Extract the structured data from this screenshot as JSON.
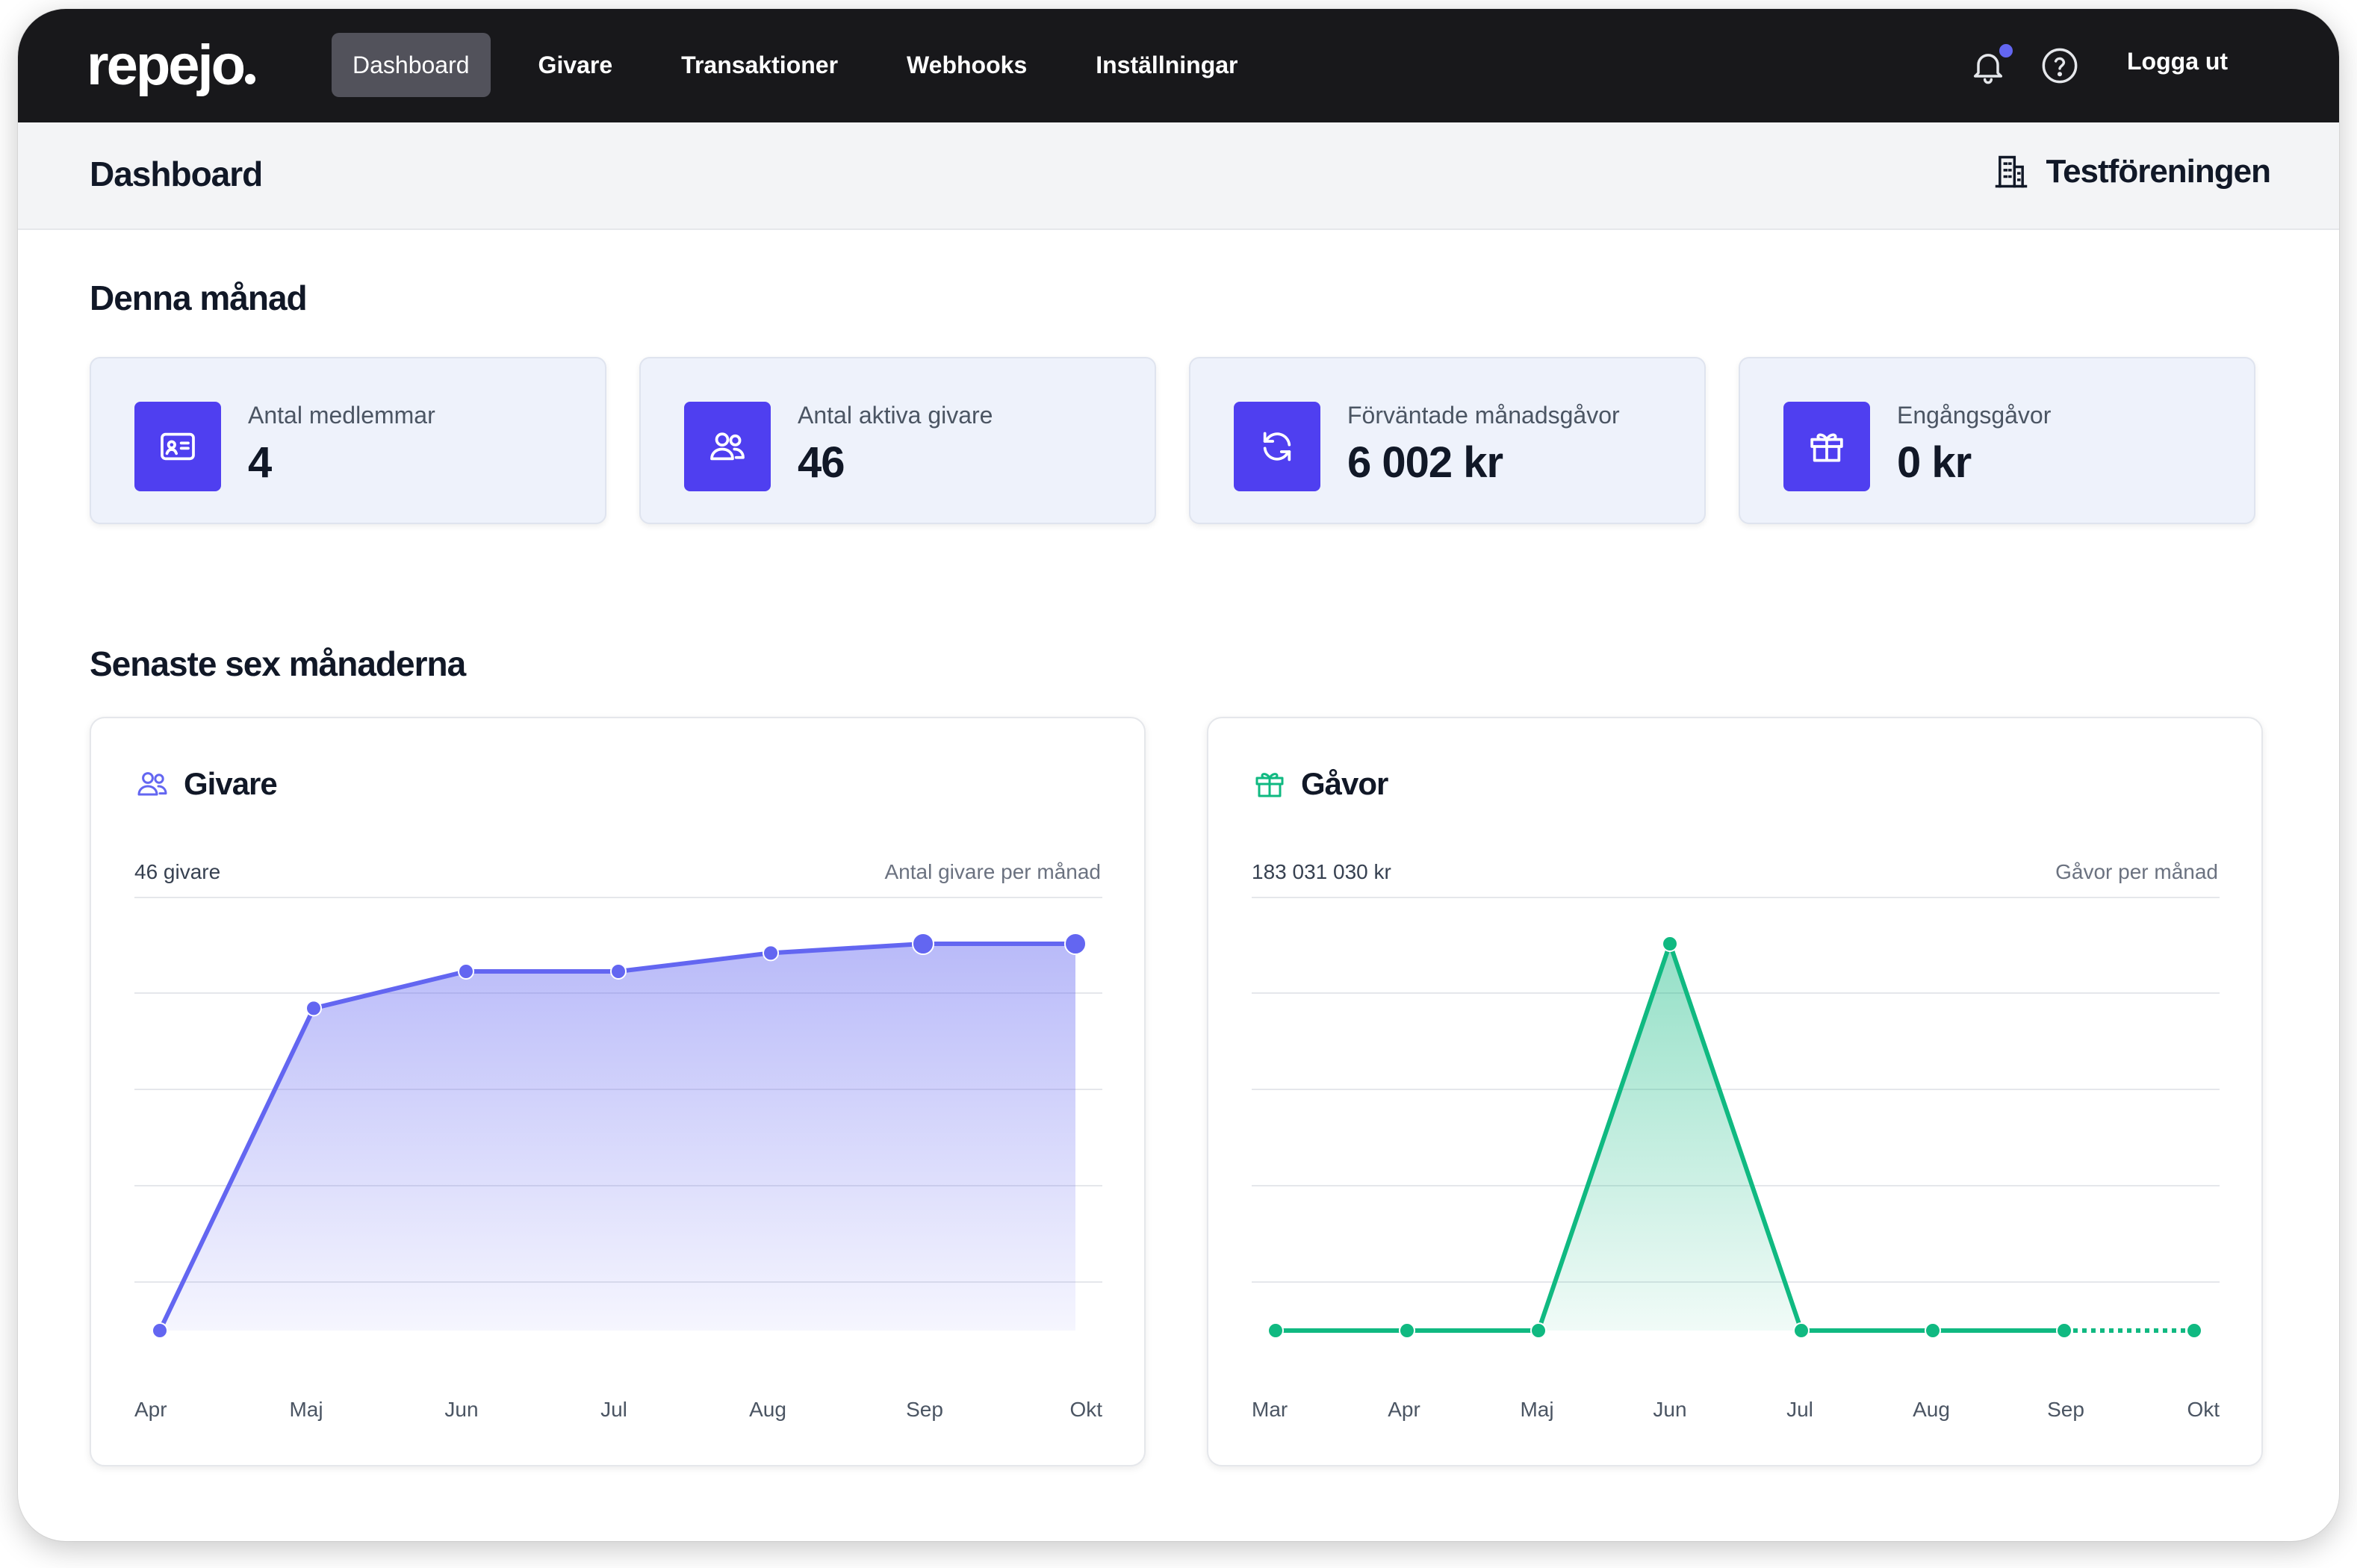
{
  "app": {
    "logo": "repejo",
    "nav": [
      "Dashboard",
      "Givare",
      "Transaktioner",
      "Webhooks",
      "Inställningar"
    ],
    "active_nav": "Dashboard",
    "logout_label": "Logga ut",
    "icons": [
      "bell-icon",
      "help-icon"
    ],
    "notification_dot_color": "#6366f1"
  },
  "header": {
    "title": "Dashboard",
    "organization": "Testföreningen",
    "organization_icon": "building-icon"
  },
  "this_month": {
    "title": "Denna månad",
    "stats": [
      {
        "label": "Antal medlemmar",
        "value": "4",
        "icon": "id-card-icon"
      },
      {
        "label": "Antal aktiva givare",
        "value": "46",
        "icon": "users-icon"
      },
      {
        "label": "Förväntade månadsgåvor",
        "value": "6 002 kr",
        "icon": "refresh-icon"
      },
      {
        "label": "Engångsgåvor",
        "value": "0 kr",
        "icon": "gift-icon"
      }
    ],
    "accent_color": "#4f3ff0"
  },
  "last_six": {
    "title": "Senaste sex månaderna",
    "givare": {
      "title": "Givare",
      "summary": "46 givare",
      "subtitle": "Antal givare per månad",
      "color": "#6366f1"
    },
    "gavor": {
      "title": "Gåvor",
      "summary": "183 031 030 kr",
      "subtitle": "Gåvor per månad",
      "color": "#10b981"
    }
  },
  "chart_data": [
    {
      "type": "area",
      "categories": [
        "Apr",
        "Maj",
        "Jun",
        "Jul",
        "Aug",
        "Sep",
        "Okt"
      ],
      "series": [
        {
          "values": [
            0,
            35,
            39,
            39,
            41,
            42,
            42
          ]
        }
      ],
      "ylim": [
        0,
        42
      ],
      "grid": true
    },
    {
      "type": "area",
      "categories": [
        "Mar",
        "Apr",
        "Maj",
        "Jun",
        "Jul",
        "Aug",
        "Sep",
        "Okt"
      ],
      "series": [
        {
          "values": [
            0,
            0,
            0,
            183031030,
            0,
            0,
            0,
            0
          ]
        }
      ],
      "ylim": [
        0,
        183031030
      ],
      "grid": true,
      "dashed_last_segment": true
    }
  ]
}
